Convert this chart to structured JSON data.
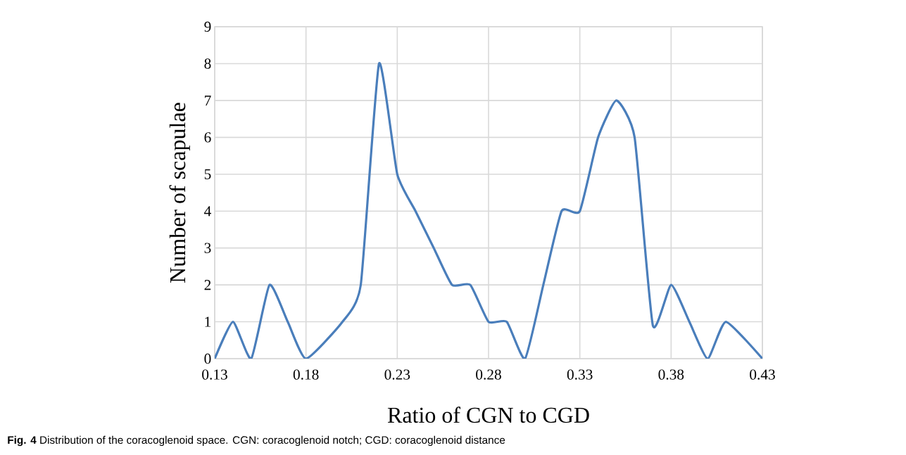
{
  "chart_data": {
    "type": "line",
    "xlabel": "Ratio of CGN to CGD",
    "ylabel": "Number of scapulae",
    "annotations": [
      "**Fig. 4** Distribution of the coracoglenoid space. CGN: coracoglenoid notch; CGD: coracoglenoid distance"
    ],
    "x": [
      0.13,
      0.14,
      0.15,
      0.16,
      0.17,
      0.18,
      0.2,
      0.21,
      0.22,
      0.23,
      0.24,
      0.25,
      0.26,
      0.27,
      0.28,
      0.29,
      0.3,
      0.31,
      0.32,
      0.33,
      0.34,
      0.35,
      0.36,
      0.37,
      0.38,
      0.39,
      0.4,
      0.41,
      0.43
    ],
    "series": [
      {
        "color": "#4a7ebb",
        "values": [
          0,
          1,
          0,
          2,
          1,
          0,
          1,
          2,
          8,
          5,
          4,
          3,
          2,
          2,
          1,
          1,
          0,
          2,
          4,
          4,
          6,
          7,
          6,
          0.9,
          2,
          1,
          0,
          1,
          0
        ]
      }
    ],
    "xlim": [
      0.13,
      0.43
    ],
    "ylim": [
      0,
      9
    ],
    "xticks": [
      0.13,
      0.18,
      0.23,
      0.28,
      0.33,
      0.38,
      0.43
    ],
    "yticks": [
      0,
      1,
      2,
      3,
      4,
      5,
      6,
      7,
      8,
      9
    ],
    "grid": true
  }
}
